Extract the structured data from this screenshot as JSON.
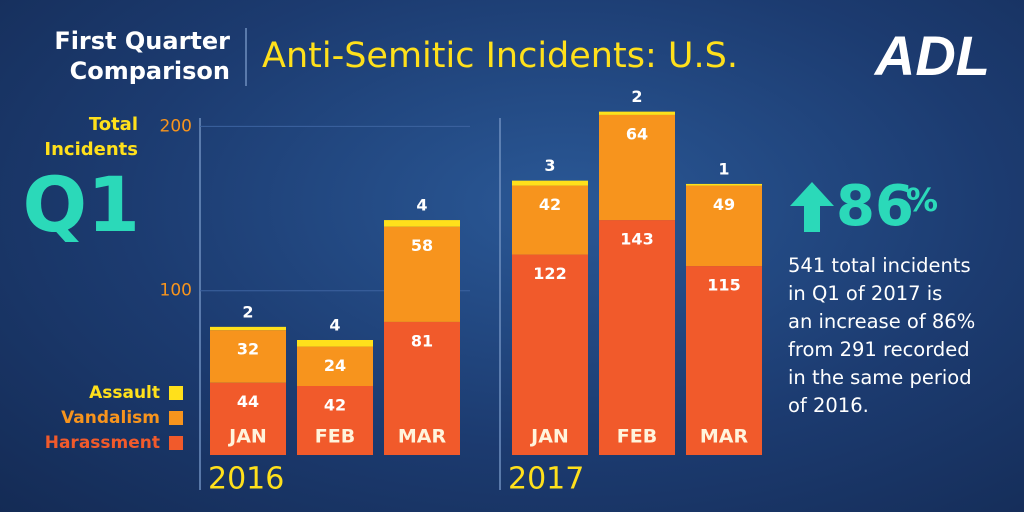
{
  "header": {
    "subtitle_lines": [
      "First Quarter",
      "Comparison"
    ],
    "title": "Anti-Semitic Incidents: U.S.",
    "logo": "ADL"
  },
  "sidebar": {
    "label_lines": [
      "Total",
      "Incidents"
    ],
    "period": "Q1"
  },
  "stat": {
    "number": "86",
    "unit": "%",
    "description_lines": [
      "541 total incidents",
      "in Q1 of 2017 is",
      "an increase of 86%",
      "from 291 recorded",
      "in the same period",
      "of 2016."
    ]
  },
  "chart_data": [
    {
      "type": "bar",
      "stacked": true,
      "title": "2016",
      "categories": [
        "JAN",
        "FEB",
        "MAR"
      ],
      "series": [
        {
          "name": "Harassment",
          "color": "#f15a2b",
          "values": [
            44,
            42,
            81
          ]
        },
        {
          "name": "Vandalism",
          "color": "#f7941d",
          "values": [
            32,
            24,
            58
          ]
        },
        {
          "name": "Assault",
          "color": "#ffe01b",
          "values": [
            2,
            4,
            4
          ]
        }
      ],
      "ylim": [
        0,
        210
      ],
      "yticks": [
        100,
        200
      ],
      "grid": true,
      "legend": "bottom-left"
    },
    {
      "type": "bar",
      "stacked": true,
      "title": "2017",
      "categories": [
        "JAN",
        "FEB",
        "MAR"
      ],
      "series": [
        {
          "color": "#f15a2b",
          "values": [
            122,
            143,
            115
          ]
        },
        {
          "color": "#f7941d",
          "values": [
            42,
            64,
            49
          ]
        },
        {
          "color": "#ffe01b",
          "values": [
            3,
            2,
            1
          ]
        }
      ],
      "ylim": [
        0,
        210
      ]
    }
  ]
}
